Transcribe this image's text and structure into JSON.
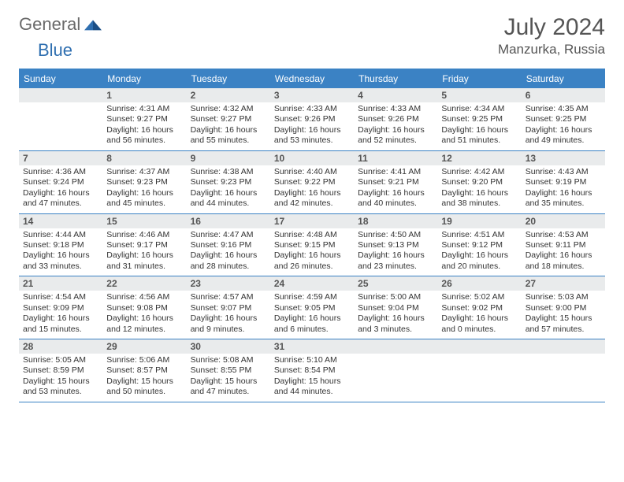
{
  "brand": {
    "part1": "General",
    "part2": "Blue"
  },
  "title": "July 2024",
  "location": "Manzurka, Russia",
  "colors": {
    "accent": "#3b82c4",
    "header_bg": "#3b82c4",
    "daynum_bg": "#e9ebec",
    "text": "#333333",
    "muted": "#555555",
    "brand_gray": "#6a6a6a",
    "brand_blue": "#2f6fb0",
    "page_bg": "#ffffff"
  },
  "weekdays": [
    "Sunday",
    "Monday",
    "Tuesday",
    "Wednesday",
    "Thursday",
    "Friday",
    "Saturday"
  ],
  "weeks": [
    [
      {
        "day": "",
        "sunrise": "",
        "sunset": "",
        "daylight": ""
      },
      {
        "day": "1",
        "sunrise": "Sunrise: 4:31 AM",
        "sunset": "Sunset: 9:27 PM",
        "daylight": "Daylight: 16 hours and 56 minutes."
      },
      {
        "day": "2",
        "sunrise": "Sunrise: 4:32 AM",
        "sunset": "Sunset: 9:27 PM",
        "daylight": "Daylight: 16 hours and 55 minutes."
      },
      {
        "day": "3",
        "sunrise": "Sunrise: 4:33 AM",
        "sunset": "Sunset: 9:26 PM",
        "daylight": "Daylight: 16 hours and 53 minutes."
      },
      {
        "day": "4",
        "sunrise": "Sunrise: 4:33 AM",
        "sunset": "Sunset: 9:26 PM",
        "daylight": "Daylight: 16 hours and 52 minutes."
      },
      {
        "day": "5",
        "sunrise": "Sunrise: 4:34 AM",
        "sunset": "Sunset: 9:25 PM",
        "daylight": "Daylight: 16 hours and 51 minutes."
      },
      {
        "day": "6",
        "sunrise": "Sunrise: 4:35 AM",
        "sunset": "Sunset: 9:25 PM",
        "daylight": "Daylight: 16 hours and 49 minutes."
      }
    ],
    [
      {
        "day": "7",
        "sunrise": "Sunrise: 4:36 AM",
        "sunset": "Sunset: 9:24 PM",
        "daylight": "Daylight: 16 hours and 47 minutes."
      },
      {
        "day": "8",
        "sunrise": "Sunrise: 4:37 AM",
        "sunset": "Sunset: 9:23 PM",
        "daylight": "Daylight: 16 hours and 45 minutes."
      },
      {
        "day": "9",
        "sunrise": "Sunrise: 4:38 AM",
        "sunset": "Sunset: 9:23 PM",
        "daylight": "Daylight: 16 hours and 44 minutes."
      },
      {
        "day": "10",
        "sunrise": "Sunrise: 4:40 AM",
        "sunset": "Sunset: 9:22 PM",
        "daylight": "Daylight: 16 hours and 42 minutes."
      },
      {
        "day": "11",
        "sunrise": "Sunrise: 4:41 AM",
        "sunset": "Sunset: 9:21 PM",
        "daylight": "Daylight: 16 hours and 40 minutes."
      },
      {
        "day": "12",
        "sunrise": "Sunrise: 4:42 AM",
        "sunset": "Sunset: 9:20 PM",
        "daylight": "Daylight: 16 hours and 38 minutes."
      },
      {
        "day": "13",
        "sunrise": "Sunrise: 4:43 AM",
        "sunset": "Sunset: 9:19 PM",
        "daylight": "Daylight: 16 hours and 35 minutes."
      }
    ],
    [
      {
        "day": "14",
        "sunrise": "Sunrise: 4:44 AM",
        "sunset": "Sunset: 9:18 PM",
        "daylight": "Daylight: 16 hours and 33 minutes."
      },
      {
        "day": "15",
        "sunrise": "Sunrise: 4:46 AM",
        "sunset": "Sunset: 9:17 PM",
        "daylight": "Daylight: 16 hours and 31 minutes."
      },
      {
        "day": "16",
        "sunrise": "Sunrise: 4:47 AM",
        "sunset": "Sunset: 9:16 PM",
        "daylight": "Daylight: 16 hours and 28 minutes."
      },
      {
        "day": "17",
        "sunrise": "Sunrise: 4:48 AM",
        "sunset": "Sunset: 9:15 PM",
        "daylight": "Daylight: 16 hours and 26 minutes."
      },
      {
        "day": "18",
        "sunrise": "Sunrise: 4:50 AM",
        "sunset": "Sunset: 9:13 PM",
        "daylight": "Daylight: 16 hours and 23 minutes."
      },
      {
        "day": "19",
        "sunrise": "Sunrise: 4:51 AM",
        "sunset": "Sunset: 9:12 PM",
        "daylight": "Daylight: 16 hours and 20 minutes."
      },
      {
        "day": "20",
        "sunrise": "Sunrise: 4:53 AM",
        "sunset": "Sunset: 9:11 PM",
        "daylight": "Daylight: 16 hours and 18 minutes."
      }
    ],
    [
      {
        "day": "21",
        "sunrise": "Sunrise: 4:54 AM",
        "sunset": "Sunset: 9:09 PM",
        "daylight": "Daylight: 16 hours and 15 minutes."
      },
      {
        "day": "22",
        "sunrise": "Sunrise: 4:56 AM",
        "sunset": "Sunset: 9:08 PM",
        "daylight": "Daylight: 16 hours and 12 minutes."
      },
      {
        "day": "23",
        "sunrise": "Sunrise: 4:57 AM",
        "sunset": "Sunset: 9:07 PM",
        "daylight": "Daylight: 16 hours and 9 minutes."
      },
      {
        "day": "24",
        "sunrise": "Sunrise: 4:59 AM",
        "sunset": "Sunset: 9:05 PM",
        "daylight": "Daylight: 16 hours and 6 minutes."
      },
      {
        "day": "25",
        "sunrise": "Sunrise: 5:00 AM",
        "sunset": "Sunset: 9:04 PM",
        "daylight": "Daylight: 16 hours and 3 minutes."
      },
      {
        "day": "26",
        "sunrise": "Sunrise: 5:02 AM",
        "sunset": "Sunset: 9:02 PM",
        "daylight": "Daylight: 16 hours and 0 minutes."
      },
      {
        "day": "27",
        "sunrise": "Sunrise: 5:03 AM",
        "sunset": "Sunset: 9:00 PM",
        "daylight": "Daylight: 15 hours and 57 minutes."
      }
    ],
    [
      {
        "day": "28",
        "sunrise": "Sunrise: 5:05 AM",
        "sunset": "Sunset: 8:59 PM",
        "daylight": "Daylight: 15 hours and 53 minutes."
      },
      {
        "day": "29",
        "sunrise": "Sunrise: 5:06 AM",
        "sunset": "Sunset: 8:57 PM",
        "daylight": "Daylight: 15 hours and 50 minutes."
      },
      {
        "day": "30",
        "sunrise": "Sunrise: 5:08 AM",
        "sunset": "Sunset: 8:55 PM",
        "daylight": "Daylight: 15 hours and 47 minutes."
      },
      {
        "day": "31",
        "sunrise": "Sunrise: 5:10 AM",
        "sunset": "Sunset: 8:54 PM",
        "daylight": "Daylight: 15 hours and 44 minutes."
      },
      {
        "day": "",
        "sunrise": "",
        "sunset": "",
        "daylight": ""
      },
      {
        "day": "",
        "sunrise": "",
        "sunset": "",
        "daylight": ""
      },
      {
        "day": "",
        "sunrise": "",
        "sunset": "",
        "daylight": ""
      }
    ]
  ],
  "typography": {
    "title_fontsize": 30,
    "location_fontsize": 17,
    "weekday_fontsize": 12,
    "daynum_fontsize": 12,
    "body_fontsize": 10.5
  }
}
